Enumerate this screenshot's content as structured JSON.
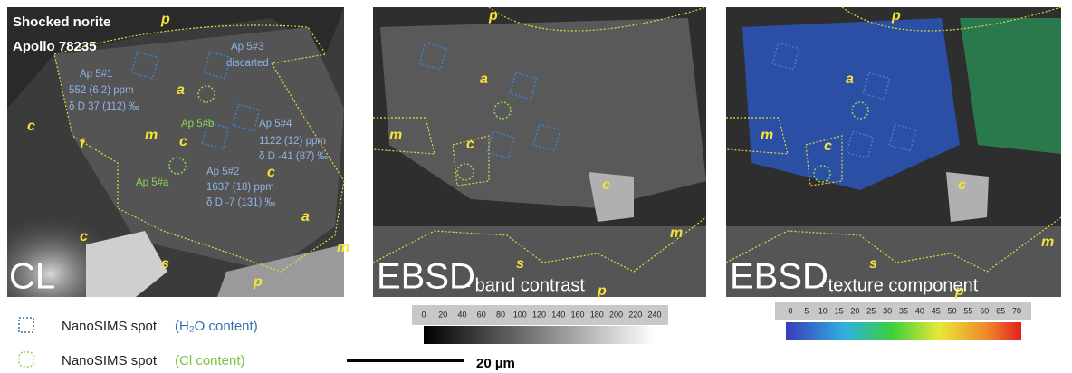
{
  "panels": [
    {
      "labels": [
        "Shocked norite",
        "Apollo 78235",
        "p",
        "Ap 5#3",
        "discarted",
        "Ap 5#1",
        "552 (6.2) ppm",
        "δ D 37 (112) ‰",
        "a",
        "Ap 5#b",
        "Ap 5#4",
        "1122 (12) ppm",
        "δ D -41 (87) ‰",
        "c",
        "f",
        "m",
        "c",
        "c",
        "Ap 5#2",
        "1637 (18) ppm",
        "δ D -7 (131) ‰",
        "Ap 5#a",
        "c",
        "a",
        "m",
        "s",
        "p",
        "CL"
      ]
    },
    {
      "labels": [
        "p",
        "a",
        "m",
        "c",
        "c",
        "m",
        "s",
        "p",
        "EBSD",
        "– band contrast"
      ]
    },
    {
      "labels": [
        "p",
        "a",
        "m",
        "c",
        "c",
        "m",
        "s",
        "p",
        "EBSD",
        "– texture component"
      ]
    }
  ],
  "colorbars": [
    {
      "ticks": [
        0,
        20,
        40,
        60,
        80,
        100,
        120,
        140,
        160,
        180,
        200,
        220,
        240
      ]
    },
    {
      "ticks": [
        0,
        5,
        10,
        15,
        20,
        25,
        30,
        35,
        40,
        45,
        50,
        55,
        60,
        65,
        70
      ]
    }
  ],
  "legend": [
    {
      "label": "NanoSIMS spot",
      "note": "(H₂O content)"
    },
    {
      "label": "NanoSIMS spot",
      "note": "(Cl content)"
    }
  ],
  "scale_bar": {
    "label": "20 µm"
  }
}
